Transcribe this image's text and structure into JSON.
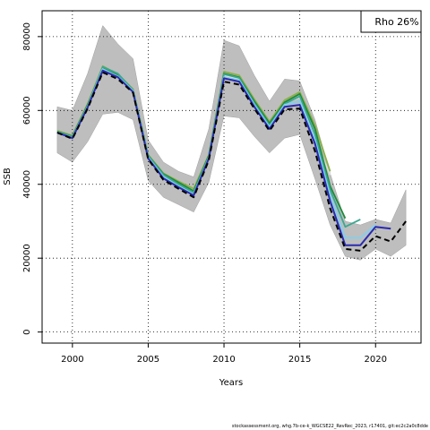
{
  "chart_data": {
    "type": "line",
    "title": "",
    "xlabel": "Years",
    "ylabel": "SSB",
    "xlim": [
      1998,
      2023
    ],
    "ylim": [
      -3000,
      87000
    ],
    "x_ticks": [
      2000,
      2005,
      2010,
      2015,
      2020
    ],
    "y_ticks": [
      0,
      20000,
      40000,
      60000,
      80000
    ],
    "grid": true,
    "legend": {
      "placement": "top-right",
      "text": "Rho 26%"
    },
    "footer": "stockassessment.org, whg.7b-ce-k_WGCSE22_RevRec_2023, r17401, git:ec2c2a0c8dde",
    "confidence_band": {
      "x": [
        1999,
        2000,
        2001,
        2002,
        2003,
        2004,
        2005,
        2006,
        2007,
        2008,
        2009,
        2010,
        2011,
        2012,
        2013,
        2014,
        2015,
        2016,
        2017,
        2018,
        2019,
        2020,
        2021,
        2022
      ],
      "lower": [
        48500,
        46000,
        51500,
        59000,
        59500,
        57500,
        41000,
        36500,
        34500,
        32500,
        40500,
        58500,
        58000,
        53000,
        48500,
        52500,
        53500,
        41500,
        29000,
        20500,
        19500,
        22500,
        20500,
        23500
      ],
      "upper": [
        61000,
        60000,
        70000,
        83000,
        78000,
        74000,
        52000,
        46000,
        43500,
        42000,
        55000,
        79000,
        77500,
        69500,
        62500,
        68500,
        68000,
        57500,
        43000,
        30000,
        29000,
        30500,
        29500,
        38500
      ]
    },
    "series": [
      {
        "color": "#e0e0e0",
        "width": 1.5,
        "dash": "",
        "x": [
          1999,
          2000,
          2001,
          2002,
          2003,
          2004,
          2005,
          2006,
          2007,
          2008,
          2009,
          2010,
          2011,
          2012,
          2013,
          2014,
          2015,
          2016,
          2017
        ],
        "values": [
          54200,
          52800,
          61000,
          71000,
          69000,
          65000,
          47500,
          42500,
          40500,
          38500,
          47500,
          69500,
          68500,
          62000,
          56500,
          62000,
          63500,
          52500,
          42500
        ]
      },
      {
        "color": "#8cb04a",
        "width": 1.8,
        "dash": "",
        "x": [
          1999,
          2000,
          2001,
          2002,
          2003,
          2004,
          2005,
          2006,
          2007,
          2008,
          2009,
          2010,
          2011,
          2012,
          2013,
          2014,
          2015,
          2016,
          2017
        ],
        "values": [
          54500,
          53200,
          61800,
          72000,
          69800,
          65800,
          48000,
          43000,
          40800,
          38800,
          48000,
          70500,
          69500,
          63000,
          57000,
          62800,
          65000,
          56000,
          43500
        ]
      },
      {
        "color": "#1f8a3a",
        "width": 1.8,
        "dash": "",
        "x": [
          1999,
          2000,
          2001,
          2002,
          2003,
          2004,
          2005,
          2006,
          2007,
          2008,
          2009,
          2010,
          2011,
          2012,
          2013,
          2014,
          2015,
          2016,
          2017,
          2018
        ],
        "values": [
          54300,
          53000,
          61500,
          71500,
          69500,
          65500,
          47800,
          42800,
          40500,
          38200,
          47800,
          70000,
          69000,
          62500,
          56500,
          62200,
          64500,
          55000,
          39500,
          30800
        ]
      },
      {
        "color": "#3aa890",
        "width": 1.8,
        "dash": "",
        "x": [
          1999,
          2000,
          2001,
          2002,
          2003,
          2004,
          2005,
          2006,
          2007,
          2008,
          2009,
          2010,
          2011,
          2012,
          2013,
          2014,
          2015,
          2016,
          2017,
          2018,
          2019
        ],
        "values": [
          54200,
          52900,
          61200,
          71800,
          70000,
          65500,
          47700,
          42600,
          40000,
          37800,
          47500,
          69800,
          68800,
          62000,
          56000,
          61800,
          63800,
          53500,
          38500,
          28500,
          30500
        ]
      },
      {
        "color": "#87ceeb",
        "width": 2.0,
        "dash": "",
        "x": [
          1999,
          2000,
          2001,
          2002,
          2003,
          2004,
          2005,
          2006,
          2007,
          2008,
          2009,
          2010,
          2011,
          2012,
          2013,
          2014,
          2015,
          2016,
          2017,
          2018,
          2019,
          2020
        ],
        "values": [
          54000,
          52600,
          61000,
          71200,
          69200,
          65300,
          47300,
          42000,
          39500,
          37200,
          47200,
          69000,
          68200,
          61500,
          55500,
          61500,
          62500,
          52000,
          37000,
          25500,
          25500,
          29000
        ]
      },
      {
        "color": "#2a2ab0",
        "width": 2.0,
        "dash": "",
        "x": [
          1999,
          2000,
          2001,
          2002,
          2003,
          2004,
          2005,
          2006,
          2007,
          2008,
          2009,
          2010,
          2011,
          2012,
          2013,
          2014,
          2015,
          2016,
          2017,
          2018,
          2019,
          2020,
          2021
        ],
        "values": [
          54000,
          52500,
          60800,
          70800,
          69000,
          65000,
          47000,
          41600,
          39200,
          37000,
          47000,
          68700,
          67800,
          61000,
          55000,
          61000,
          61500,
          51000,
          35500,
          23500,
          23500,
          28500,
          28000
        ]
      },
      {
        "color": "#000000",
        "width": 2.0,
        "dash": "6,4",
        "x": [
          1999,
          2000,
          2001,
          2002,
          2003,
          2004,
          2005,
          2006,
          2007,
          2008,
          2009,
          2010,
          2011,
          2012,
          2013,
          2014,
          2015,
          2016,
          2017,
          2018,
          2019,
          2020,
          2021,
          2022
        ],
        "values": [
          54000,
          52300,
          60500,
          70300,
          68500,
          64800,
          46800,
          41200,
          38800,
          36500,
          46500,
          67800,
          67000,
          60500,
          54500,
          60300,
          60500,
          49000,
          33500,
          22500,
          22000,
          26000,
          24500,
          30000
        ]
      }
    ]
  }
}
